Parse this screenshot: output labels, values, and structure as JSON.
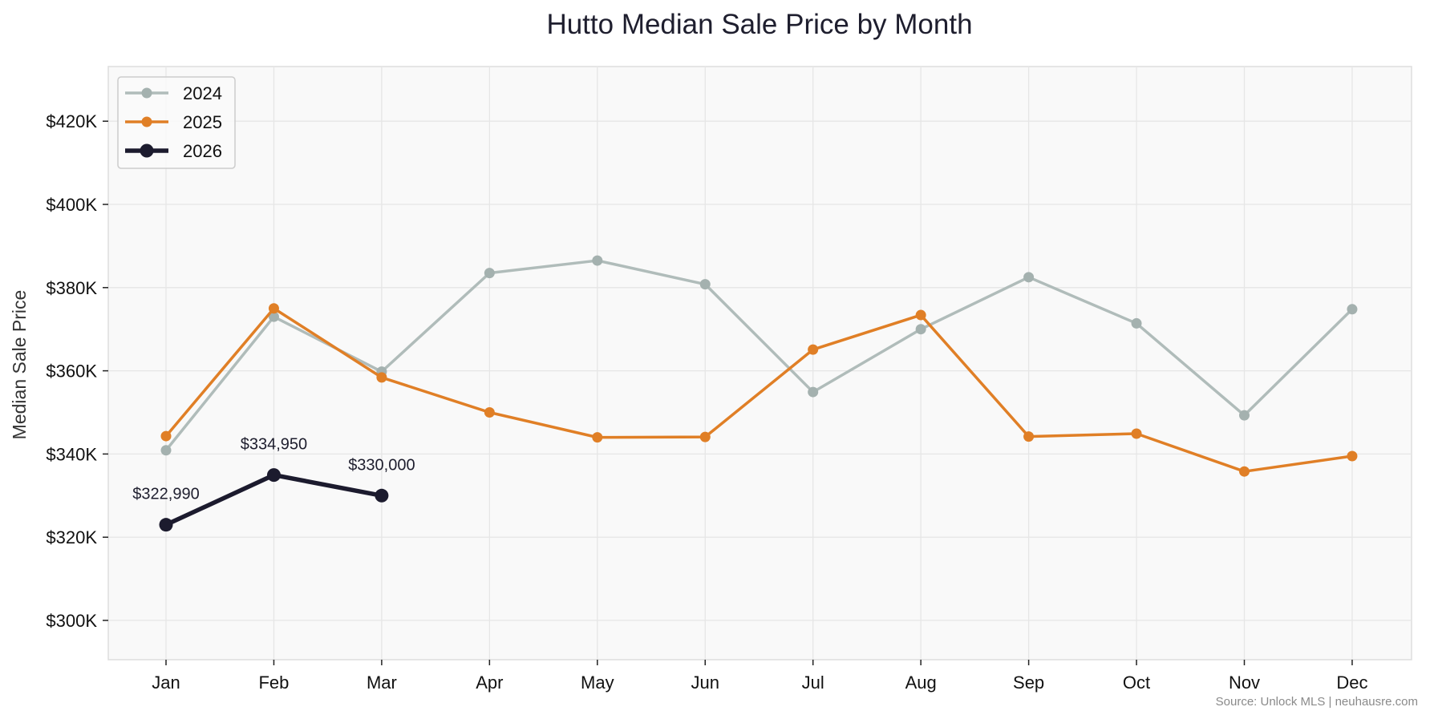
{
  "chart_data": {
    "type": "line",
    "title": "Hutto Median Sale Price by Month",
    "xlabel": "",
    "ylabel": "Median Sale Price",
    "categories": [
      "Jan",
      "Feb",
      "Mar",
      "Apr",
      "May",
      "Jun",
      "Jul",
      "Aug",
      "Sep",
      "Oct",
      "Nov",
      "Dec"
    ],
    "y_ticks": [
      300000,
      320000,
      340000,
      360000,
      380000,
      400000,
      420000
    ],
    "y_tick_labels": [
      "$300K",
      "$320K",
      "$340K",
      "$360K",
      "$380K",
      "$400K",
      "$420K"
    ],
    "ylim": [
      291000,
      432000
    ],
    "grid": true,
    "legend_position": "upper left",
    "series": [
      {
        "name": "2024",
        "color": "#b0bcba",
        "marker_color": "#a4b1af",
        "line_width": 3.5,
        "marker_radius": 6.5,
        "values": [
          340900,
          373000,
          359800,
          383500,
          386500,
          380800,
          354900,
          370000,
          382500,
          371400,
          349300,
          374800
        ]
      },
      {
        "name": "2025",
        "color": "#e07f26",
        "marker_color": "#e07f26",
        "line_width": 3.5,
        "marker_radius": 6.5,
        "values": [
          344300,
          375000,
          358400,
          350000,
          344000,
          344100,
          365100,
          373400,
          344200,
          344900,
          335800,
          339500
        ]
      },
      {
        "name": "2026",
        "color": "#1c1b2e",
        "marker_color": "#1c1b2e",
        "line_width": 5.5,
        "marker_radius": 8.5,
        "values": [
          322990,
          334950,
          330000
        ],
        "data_labels": [
          "$322,990",
          "$334,950",
          "$330,000"
        ]
      }
    ],
    "annotations": [
      "$322,990",
      "$334,950",
      "$330,000"
    ],
    "source_note": "Source: Unlock MLS | neuhausre.com"
  }
}
